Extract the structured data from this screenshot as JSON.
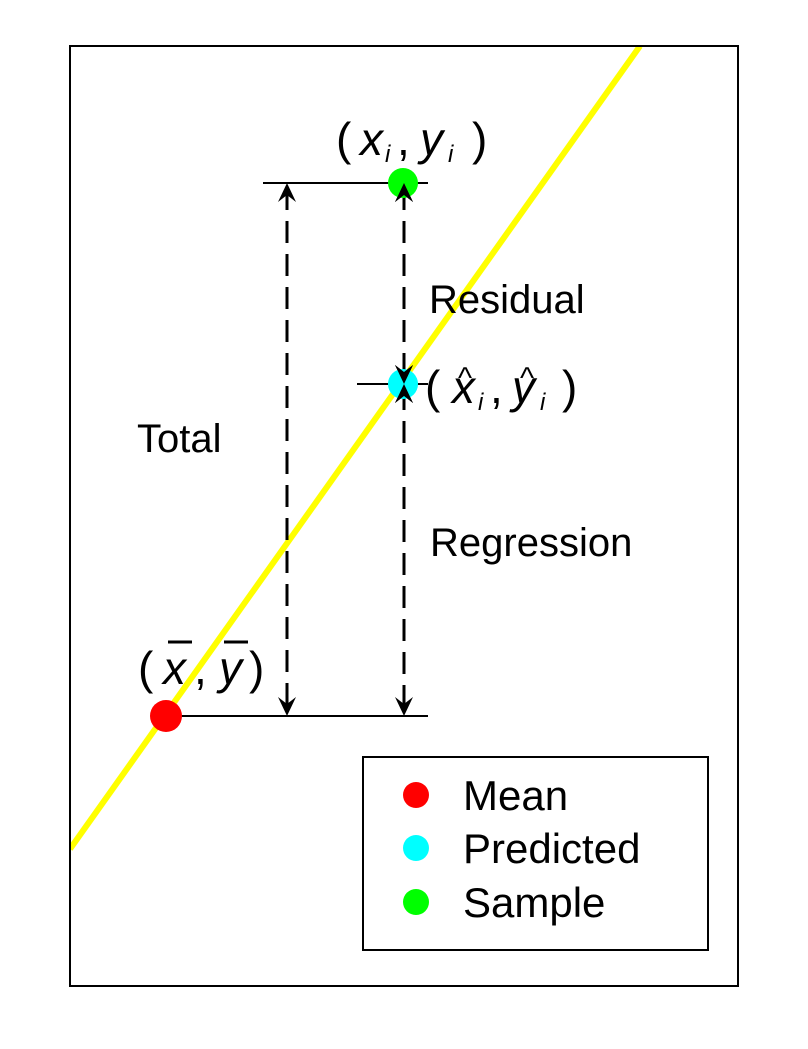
{
  "labels": {
    "total": "Total",
    "residual": "Residual",
    "regression": "Regression"
  },
  "points": {
    "sample": {
      "open": "(",
      "x": "x",
      "x_sub": "i",
      "comma": ",",
      "y": "y",
      "y_sub": "i",
      "close": ")"
    },
    "predicted": {
      "open": "(",
      "x": "x",
      "x_hat": "^",
      "x_sub": "i",
      "comma": ",",
      "y": "y",
      "y_hat": "^",
      "y_sub": "i",
      "close": ")"
    },
    "mean": {
      "open": "(",
      "x": "x",
      "comma": ",",
      "y": "y",
      "close": ")"
    }
  },
  "legend": {
    "items": [
      {
        "label": "Mean",
        "color": "#ff0000"
      },
      {
        "label": "Predicted",
        "color": "#00ffff"
      },
      {
        "label": "Sample",
        "color": "#00ff00"
      }
    ]
  },
  "colors": {
    "regression_line": "#ffff00",
    "mean": "#ff0000",
    "predicted": "#00ffff",
    "sample": "#00ff00"
  }
}
